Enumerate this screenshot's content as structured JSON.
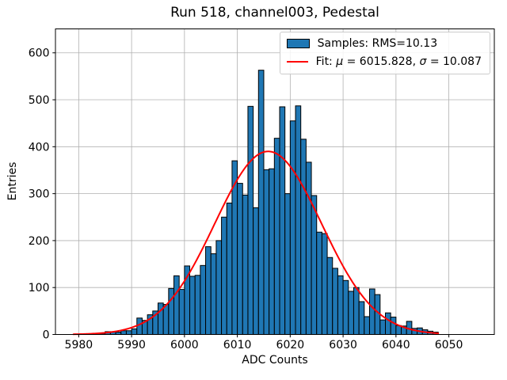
{
  "figure": {
    "title": "Run 518, channel003, Pedestal",
    "xlabel": "ADC Counts",
    "ylabel": "Entries"
  },
  "legend": {
    "samples_label": "Samples: RMS=10.13",
    "fit_parts": [
      "Fit: ",
      "μ",
      " = 6015.828, ",
      "σ",
      " = 10.087"
    ],
    "swatch_color": "#1f77b4",
    "line_color": "#ff0000",
    "position": "upper right"
  },
  "chart_data": {
    "type": "bar",
    "subtype": "histogram",
    "title": "Run 518, channel003, Pedestal",
    "xlabel": "ADC Counts",
    "ylabel": "Entries",
    "bin_start": 5984,
    "bin_width": 1,
    "values": [
      2,
      6,
      6,
      5,
      8,
      8,
      12,
      35,
      30,
      42,
      50,
      67,
      64,
      98,
      125,
      96,
      146,
      124,
      126,
      147,
      187,
      172,
      200,
      250,
      280,
      370,
      322,
      297,
      486,
      270,
      563,
      351,
      353,
      418,
      485,
      300,
      455,
      487,
      416,
      367,
      296,
      218,
      215,
      164,
      141,
      125,
      115,
      92,
      100,
      70,
      38,
      97,
      85,
      31,
      46,
      37,
      19,
      18,
      28,
      13,
      14,
      10,
      7,
      5
    ],
    "fit_curve": {
      "shape": "gaussian",
      "mu": 6015.828,
      "sigma": 10.087,
      "peak": 390,
      "x_start": 5979,
      "x_end": 6048,
      "color": "#ff0000",
      "line_width": 2
    },
    "xticks": [
      5980,
      5990,
      6000,
      6010,
      6020,
      6030,
      6040,
      6050
    ],
    "yticks": [
      0,
      100,
      200,
      300,
      400,
      500,
      600
    ],
    "xlim": [
      5975.6,
      6058.6
    ],
    "ylim": [
      0,
      651
    ],
    "grid": true,
    "legend_position": "upper right",
    "legend_entries": [
      "Samples: RMS=10.13",
      "Fit: μ = 6015.828, σ = 10.087"
    ],
    "colors": {
      "bar_fill": "#1f77b4",
      "bar_edge": "#000000",
      "grid": "#b0b0b0",
      "spine": "#000000",
      "background": "#ffffff"
    }
  }
}
